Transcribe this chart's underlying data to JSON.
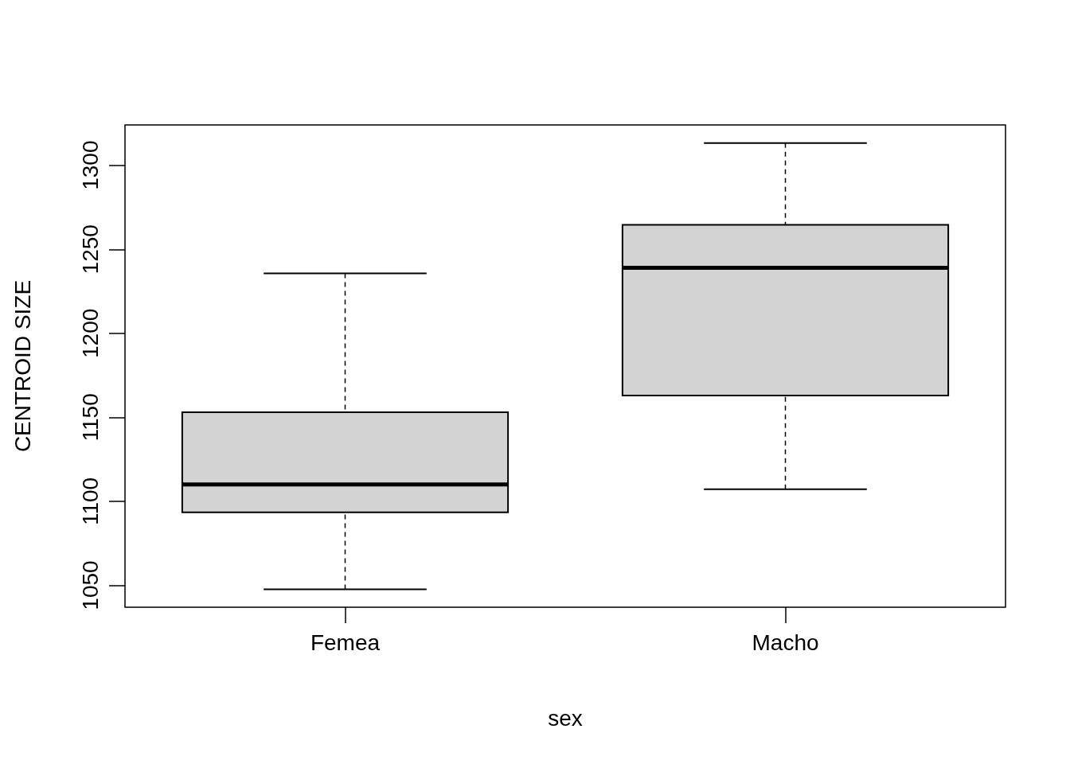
{
  "chart_data": {
    "type": "box",
    "xlabel": "sex",
    "ylabel": "CENTROID SIZE",
    "categories": [
      "Femea",
      "Macho"
    ],
    "color": "#d3d3d3",
    "boxes": [
      {
        "low": 1047.6,
        "q1": 1093.5,
        "median": 1110,
        "q3": 1153,
        "high": 1235.7
      },
      {
        "low": 1107.2,
        "q1": 1163,
        "median": 1239,
        "q3": 1264.6,
        "high": 1313.2
      }
    ],
    "ylim": [
      1037,
      1324
    ],
    "yticks": [
      1050,
      1100,
      1150,
      1200,
      1250,
      1300
    ],
    "grid": false
  }
}
